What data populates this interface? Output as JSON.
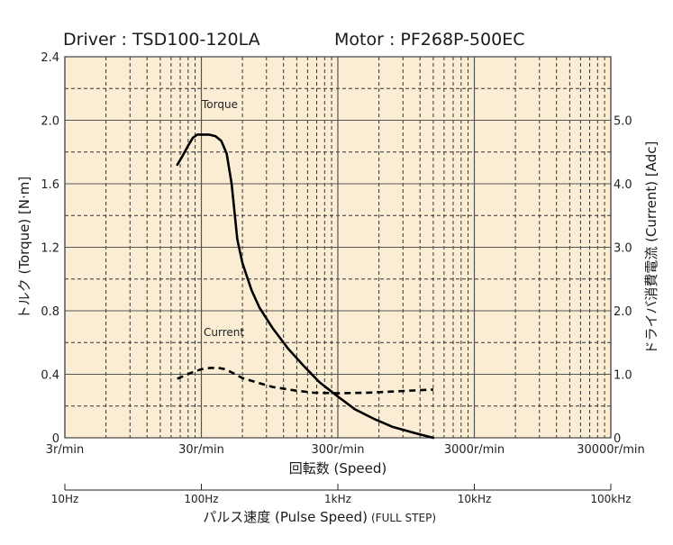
{
  "chart_data": {
    "type": "line",
    "title_driver": "Driver : TSD100-120LA",
    "title_motor": "Motor : PF268P-500EC",
    "ylabel_left": "トルク (Torque) [N·m]",
    "ylabel_right": "ドライバ消費電流 (Current) [Adc]",
    "xlabel": "回転数 (Speed)",
    "xlabel2_main": "パルス速度 (Pulse Speed)",
    "xlabel2_note": "(FULL STEP)",
    "x_scale": "log",
    "xlim": [
      3,
      30000
    ],
    "ylim_left": [
      0,
      2.4
    ],
    "ylim_right": [
      0,
      6
    ],
    "x_ticks": [
      {
        "value": 3,
        "label": "3r/min"
      },
      {
        "value": 30,
        "label": "30r/min"
      },
      {
        "value": 300,
        "label": "300r/min"
      },
      {
        "value": 3000,
        "label": "3000r/min"
      },
      {
        "value": 30000,
        "label": "30000r/min"
      }
    ],
    "y_ticks_left": [
      {
        "value": 0,
        "label": "0"
      },
      {
        "value": 0.4,
        "label": "0.4"
      },
      {
        "value": 0.8,
        "label": "0.8"
      },
      {
        "value": 1.2,
        "label": "1.2"
      },
      {
        "value": 1.6,
        "label": "1.6"
      },
      {
        "value": 2.0,
        "label": "2.0"
      },
      {
        "value": 2.4,
        "label": "2.4"
      }
    ],
    "y_ticks_right": [
      {
        "value": 0,
        "label": "0"
      },
      {
        "value": 1.0,
        "label": "1.0"
      },
      {
        "value": 2.0,
        "label": "2.0"
      },
      {
        "value": 3.0,
        "label": "3.0"
      },
      {
        "value": 4.0,
        "label": "4.0"
      },
      {
        "value": 5.0,
        "label": "5.0"
      }
    ],
    "pulse_ticks": [
      {
        "value": 3,
        "label": "10Hz"
      },
      {
        "value": 30,
        "label": "100Hz"
      },
      {
        "value": 300,
        "label": "1kHz"
      },
      {
        "value": 3000,
        "label": "10kHz"
      },
      {
        "value": 30000,
        "label": "100kHz"
      }
    ],
    "grid": true,
    "series": [
      {
        "name": "Torque",
        "axis": "left",
        "line_style": "solid",
        "x": [
          20,
          22,
          24,
          26,
          28,
          30,
          34,
          38,
          42,
          46,
          50,
          55,
          60,
          70,
          80,
          100,
          130,
          170,
          220,
          300,
          400,
          550,
          750,
          1100,
          1500
        ],
        "y": [
          1.72,
          1.78,
          1.84,
          1.89,
          1.91,
          1.91,
          1.91,
          1.9,
          1.87,
          1.79,
          1.6,
          1.25,
          1.1,
          0.93,
          0.82,
          0.69,
          0.56,
          0.45,
          0.35,
          0.26,
          0.18,
          0.12,
          0.07,
          0.03,
          0.0
        ]
      },
      {
        "name": "Current",
        "axis": "right",
        "line_style": "dashed",
        "x": [
          20,
          25,
          30,
          35,
          40,
          45,
          50,
          60,
          80,
          100,
          150,
          200,
          300,
          500,
          800,
          1200,
          1500
        ],
        "y": [
          0.93,
          1.02,
          1.08,
          1.1,
          1.1,
          1.08,
          1.03,
          0.94,
          0.86,
          0.8,
          0.74,
          0.71,
          0.7,
          0.71,
          0.73,
          0.75,
          0.76
        ]
      }
    ],
    "colors": {
      "plot_bg": "#fbedd4",
      "curve": "#000000",
      "major_grid": "#555555",
      "minor_grid": "#333333"
    }
  }
}
